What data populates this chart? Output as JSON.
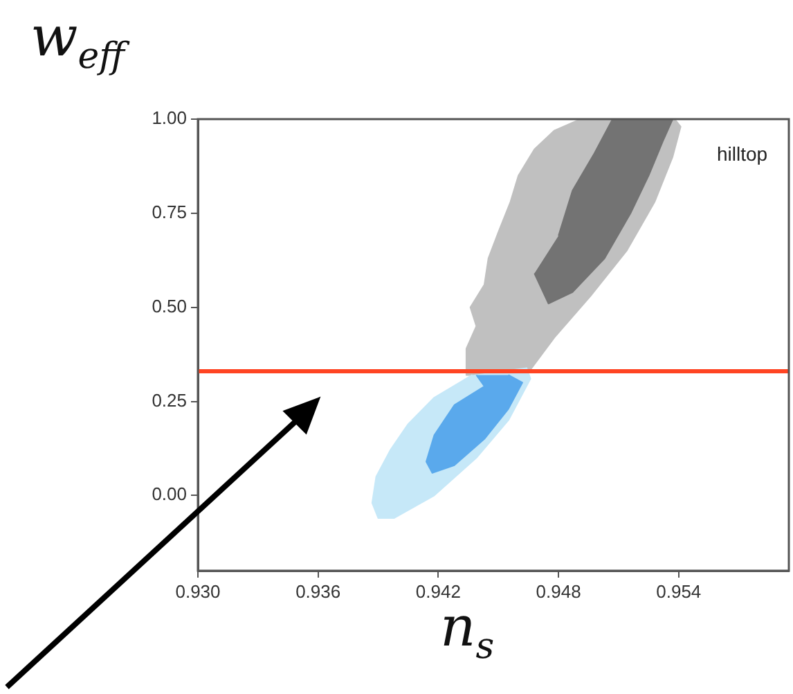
{
  "chart_data": {
    "type": "area",
    "xlabel": "n$_{s}$",
    "ylabel": "w$_{eff}$",
    "xlim": [
      0.93,
      0.9595
    ],
    "xticks": [
      {
        "value": 0.93,
        "label": "0.930"
      },
      0.936,
      0.942,
      0.948,
      0.954
    ],
    "ylim": [
      -0.2,
      1.0
    ],
    "yticks": [
      {
        "value": 0,
        "label": "0.00"
      },
      0.25,
      {
        "value": 0.5,
        "label": "0.50"
      },
      0.75,
      {
        "value": 1,
        "label": "1.00"
      }
    ],
    "grid": false,
    "legend": false,
    "series": [
      {
        "color": "#c0c0c0",
        "x": [
          0.9491,
          0.9478,
          0.9468,
          0.946,
          0.9456,
          0.945,
          0.9445,
          0.9443,
          0.9436,
          0.9439,
          0.9434,
          0.9434,
          0.9464,
          0.9478,
          0.9496,
          0.9514,
          0.9528,
          0.9537,
          0.9541,
          0.9538
        ],
        "values": [
          1.0,
          0.97,
          0.92,
          0.85,
          0.78,
          0.7,
          0.63,
          0.56,
          0.5,
          0.45,
          0.39,
          0.32,
          0.32,
          0.42,
          0.53,
          0.65,
          0.78,
          0.9,
          0.98,
          1.0
        ]
      },
      {
        "color": "#737373",
        "x": [
          0.9468,
          0.9475,
          0.9487,
          0.9503,
          0.9516,
          0.9525,
          0.9532,
          0.9537,
          0.9507,
          0.9498,
          0.9487,
          0.948
        ],
        "values": [
          0.59,
          0.51,
          0.54,
          0.63,
          0.75,
          0.85,
          0.94,
          1.0,
          1.0,
          0.91,
          0.81,
          0.69
        ]
      },
      {
        "color": "#c6e8f8",
        "x": [
          0.9437,
          0.9418,
          0.9405,
          0.9396,
          0.9389,
          0.9387,
          0.939,
          0.9398,
          0.9418,
          0.9439,
          0.9455,
          0.9466,
          0.9464
        ],
        "values": [
          0.32,
          0.26,
          0.19,
          0.12,
          0.05,
          -0.02,
          -0.06,
          -0.06,
          0.0,
          0.1,
          0.2,
          0.31,
          0.34
        ]
      },
      {
        "color": "#5aa9ec",
        "x": [
          0.9439,
          0.9443,
          0.9428,
          0.9418,
          0.9414,
          0.9417,
          0.9428,
          0.9443,
          0.9455,
          0.9462,
          0.9455
        ],
        "values": [
          0.32,
          0.29,
          0.24,
          0.16,
          0.09,
          0.06,
          0.08,
          0.15,
          0.23,
          0.3,
          0.32
        ]
      }
    ],
    "ref_lines": [
      {
        "axis": "y",
        "value": 0.33,
        "color": "#ff4422"
      }
    ],
    "annotations": [
      "hilltop"
    ]
  }
}
